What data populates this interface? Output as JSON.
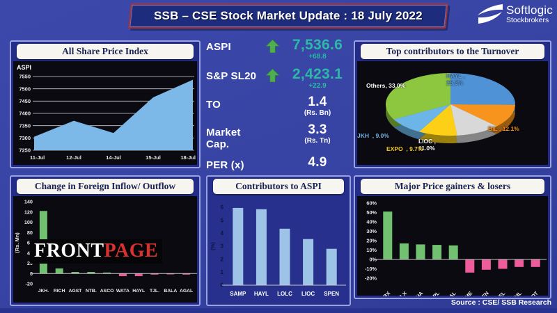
{
  "header": {
    "title": "SSB – CSE Stock Market Update : 18 July 2022"
  },
  "logo": {
    "name": "Softlogic",
    "subtitle": "Stockbrokers"
  },
  "source_note": "Source : CSE/ SSB Research",
  "colors": {
    "page_bg": "#3743a2",
    "panel_black": "#0a0a10",
    "accent_teal": "#2cb9a6",
    "arrow_green": "#4fae4f",
    "gain_green": "#71c171",
    "loss_pink": "#ee5c9b",
    "area_blue": "#7cb9e8",
    "bar_lightblue": "#9dc3e6",
    "header_red_border": "#a93434"
  },
  "stats": {
    "rows": [
      {
        "label": "ASPI",
        "value": "7,536.6",
        "change": "+68.8",
        "direction": "up"
      },
      {
        "label": "S&P SL20",
        "value": "2,423.1",
        "change": "+22.9",
        "direction": "up"
      },
      {
        "label": "TO",
        "value": "1.4",
        "unit": "(Rs. Bn)"
      },
      {
        "label": "Market Cap.",
        "value": "3.3",
        "unit": "(Rs. Tn)"
      },
      {
        "label": "PER (x)",
        "value": "4.9"
      }
    ]
  },
  "chart_data": [
    {
      "id": "aspi_trend",
      "type": "area",
      "title": "All Share Price Index",
      "ylabel": "ASPI",
      "x": [
        "11-Jul",
        "12-Jul",
        "14-Jul",
        "15-Jul",
        "18-Jul"
      ],
      "values": [
        7305,
        7370,
        7320,
        7465,
        7537
      ],
      "ylim": [
        7250,
        7550
      ],
      "ytick_step": 50,
      "yticks": [
        "7250",
        "7300",
        "7350",
        "7400",
        "7450",
        "7500",
        "7550"
      ],
      "grid": true,
      "fill": "#7cb9e8",
      "bg": "#0a0a10"
    },
    {
      "id": "turnover_pie",
      "type": "pie",
      "title": "Top contributors to the Turnover",
      "slices": [
        {
          "name": "HAYL",
          "value": 25.3,
          "color": "#4f93d6",
          "label_lines": [
            "HAYL ,",
            "25.3%"
          ],
          "label_color": "#5b9bd5"
        },
        {
          "name": "BIL",
          "value": 12.1,
          "color": "#f7941e",
          "label_lines": [
            "BIL , 12.1%"
          ],
          "label_color": "#f7941e"
        },
        {
          "name": "LIOC",
          "value": 11.0,
          "color": "#d8d8d8",
          "label_lines": [
            "LIOC ,",
            "11.0%"
          ],
          "label_color": "#ffffff"
        },
        {
          "name": "EXPO",
          "value": 9.7,
          "color": "#fdd017",
          "label_lines": [
            "EXPO  , 9.7%"
          ],
          "label_color": "#fdd017"
        },
        {
          "name": "JKH",
          "value": 9.0,
          "color": "#6cb5e8",
          "label_lines": [
            "JKH  , 9.0%"
          ],
          "label_color": "#79b8ea"
        },
        {
          "name": "Others",
          "value": 33.0,
          "color": "#8dc63f",
          "label_lines": [
            "Others, 33.0%"
          ],
          "label_color": "#ffffff"
        }
      ]
    },
    {
      "id": "foreign_flow",
      "type": "bar",
      "title": "Change in Foreign Inflow/ Outflow",
      "ylabel": "(Rs. Mn)",
      "categories": [
        "JKH.",
        "RICH",
        "AGST",
        "NTB.",
        "ASCO",
        "WATA",
        "HAYL",
        "TJL.",
        "BALA",
        "AGAL"
      ],
      "values": [
        122,
        10,
        3,
        3,
        2,
        -5,
        -5,
        -2,
        -1,
        -2
      ],
      "ylim": [
        -20,
        140
      ],
      "ytick_step": 20,
      "yticks": [
        "-20",
        "0",
        "20",
        "40",
        "60",
        "80",
        "100",
        "120",
        "140"
      ],
      "pos_color": "#71c171",
      "neg_color": "#ee5c9b",
      "watermark": {
        "part1": "FRONT",
        "part2": "PAGE"
      }
    },
    {
      "id": "aspi_contributors",
      "type": "bar",
      "title": "Contributors to ASPI",
      "ylabel": "(%)",
      "categories": [
        "SAMP",
        "HAYL",
        "LOLC",
        "LIOC",
        "SPEN"
      ],
      "values": [
        5.95,
        5.85,
        4.35,
        3.55,
        2.8
      ],
      "ylim": [
        0,
        6
      ],
      "ytick_step": 1,
      "yticks": [
        "0",
        "1",
        "2",
        "3",
        "4",
        "5",
        "6"
      ],
      "pos_color": "#9dc3e6"
    },
    {
      "id": "gainers_losers",
      "type": "bar",
      "title": "Major Price gainers & losers",
      "categories": [
        "SEMBX",
        "CHLX",
        "KAHA",
        "BOPL",
        "AGAL",
        "ACME",
        "BFN",
        "ODEL",
        "TSML",
        "CHOT"
      ],
      "values": [
        51,
        17,
        16,
        15.5,
        15,
        -14,
        -11,
        -10,
        -8,
        -8
      ],
      "ylim": [
        -20,
        60
      ],
      "ytick_step": 10,
      "ytick_suffix": "%",
      "yticks": [
        "-20%",
        "-10%",
        "0%",
        "10%",
        "20%",
        "30%",
        "40%",
        "50%",
        "60%"
      ],
      "pos_color": "#71c171",
      "neg_color": "#ee5c9b",
      "rotate_labels": true
    }
  ]
}
